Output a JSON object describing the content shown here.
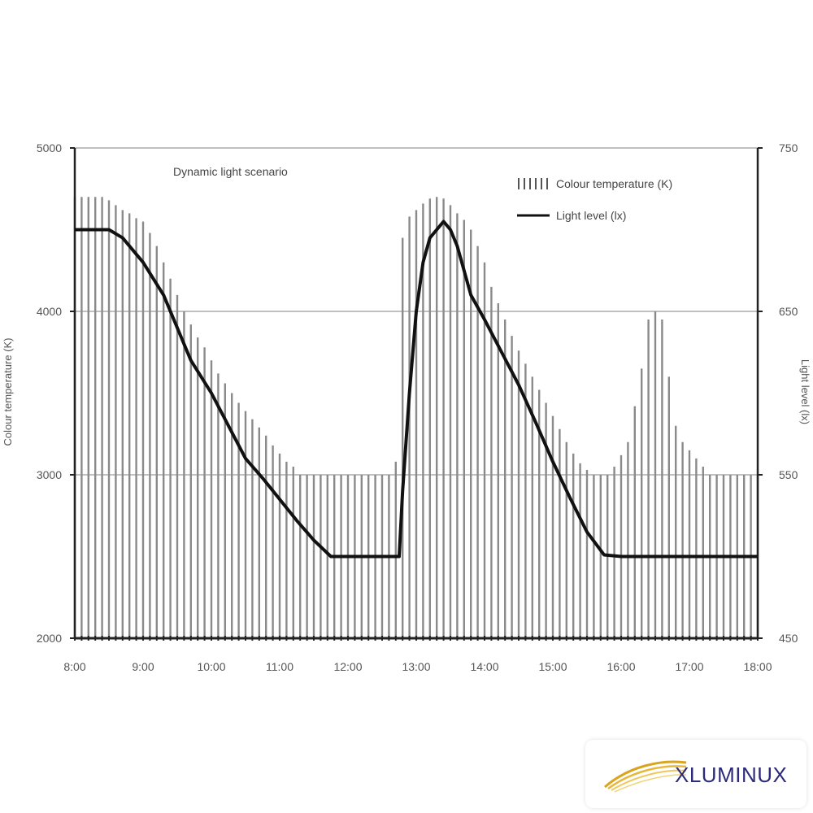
{
  "chart_data": {
    "type": "bar+line",
    "title": "Dynamic light scenario",
    "ylabel_left": "Colour temperature (K)",
    "ylabel_right": "Light level (lx)",
    "ylim_left": [
      2000,
      5000
    ],
    "ylim_right": [
      450,
      750
    ],
    "yticks_left": [
      "2000",
      "3000",
      "4000",
      "5000"
    ],
    "yticks_right": [
      "450",
      "550",
      "650",
      "750"
    ],
    "xticks": [
      "8:00",
      "9:00",
      "10:00",
      "11:00",
      "12:00",
      "13:00",
      "14:00",
      "15:00",
      "16:00",
      "17:00",
      "18:00"
    ],
    "x_start": "8:00",
    "x_end": "18:00",
    "grid": "horizontal",
    "legend_position": "top-right",
    "series": [
      {
        "name": "Colour temperature (K)",
        "type": "bar",
        "x": [
          "8:00",
          "8:06",
          "8:12",
          "8:18",
          "8:24",
          "8:30",
          "8:36",
          "8:42",
          "8:48",
          "8:54",
          "9:00",
          "9:06",
          "9:12",
          "9:18",
          "9:24",
          "9:30",
          "9:36",
          "9:42",
          "9:48",
          "9:54",
          "10:00",
          "10:06",
          "10:12",
          "10:18",
          "10:24",
          "10:30",
          "10:36",
          "10:42",
          "10:48",
          "10:54",
          "11:00",
          "11:06",
          "11:12",
          "11:18",
          "11:24",
          "11:30",
          "11:36",
          "11:42",
          "11:48",
          "11:54",
          "12:00",
          "12:06",
          "12:12",
          "12:18",
          "12:24",
          "12:30",
          "12:36",
          "12:42",
          "12:48",
          "12:54",
          "13:00",
          "13:06",
          "13:12",
          "13:18",
          "13:24",
          "13:30",
          "13:36",
          "13:42",
          "13:48",
          "13:54",
          "14:00",
          "14:06",
          "14:12",
          "14:18",
          "14:24",
          "14:30",
          "14:36",
          "14:42",
          "14:48",
          "14:54",
          "15:00",
          "15:06",
          "15:12",
          "15:18",
          "15:24",
          "15:30",
          "15:36",
          "15:42",
          "15:48",
          "15:54",
          "16:00",
          "16:06",
          "16:12",
          "16:18",
          "16:24",
          "16:30",
          "16:36",
          "16:42",
          "16:48",
          "16:54",
          "17:00",
          "17:06",
          "17:12",
          "17:18",
          "17:24",
          "17:30",
          "17:36",
          "17:42",
          "17:48",
          "17:54",
          "18:00"
        ],
        "values": [
          4700,
          4700,
          4700,
          4700,
          4700,
          4680,
          4650,
          4620,
          4600,
          4570,
          4550,
          4480,
          4400,
          4300,
          4200,
          4100,
          4000,
          3920,
          3840,
          3780,
          3700,
          3620,
          3560,
          3500,
          3440,
          3390,
          3340,
          3290,
          3240,
          3180,
          3130,
          3080,
          3050,
          3000,
          3000,
          3000,
          3000,
          3000,
          3000,
          3000,
          3000,
          3000,
          3000,
          3000,
          3000,
          3000,
          3000,
          3080,
          4450,
          4580,
          4620,
          4660,
          4690,
          4700,
          4690,
          4650,
          4600,
          4560,
          4500,
          4400,
          4300,
          4150,
          4050,
          3950,
          3850,
          3760,
          3680,
          3600,
          3520,
          3440,
          3360,
          3280,
          3200,
          3130,
          3070,
          3030,
          3000,
          3000,
          3000,
          3050,
          3120,
          3200,
          3420,
          3650,
          3950,
          4000,
          3950,
          3600,
          3300,
          3200,
          3150,
          3100,
          3050,
          3000,
          3000,
          3000,
          3000,
          3000,
          3000,
          3000,
          3000
        ]
      },
      {
        "name": "Light level (lx)",
        "type": "line",
        "x": [
          "8:00",
          "8:30",
          "8:42",
          "9:00",
          "9:18",
          "9:30",
          "9:42",
          "10:00",
          "10:15",
          "10:30",
          "10:45",
          "11:00",
          "11:15",
          "11:30",
          "11:45",
          "12:00",
          "12:15",
          "12:45",
          "12:48",
          "12:54",
          "13:00",
          "13:06",
          "13:12",
          "13:18",
          "13:24",
          "13:30",
          "13:36",
          "13:42",
          "13:48",
          "14:00",
          "14:15",
          "14:30",
          "14:45",
          "15:00",
          "15:15",
          "15:30",
          "15:45",
          "16:00",
          "16:15",
          "17:00",
          "18:00"
        ],
        "values": [
          700,
          700,
          695,
          680,
          660,
          640,
          620,
          600,
          580,
          560,
          548,
          535,
          522,
          510,
          500,
          500,
          500,
          500,
          540,
          600,
          650,
          680,
          695,
          700,
          705,
          700,
          690,
          675,
          660,
          645,
          625,
          605,
          582,
          558,
          536,
          515,
          501,
          500,
          500,
          500,
          500
        ]
      }
    ]
  },
  "logo": {
    "text": "XLUMINUX"
  },
  "colors": {
    "bar": "#8a8a8a",
    "line": "#111111",
    "grid": "#9a9a9a",
    "axis": "#222222",
    "logo_text": "#2b2b7a",
    "logo_swoosh": "#d9a520"
  }
}
